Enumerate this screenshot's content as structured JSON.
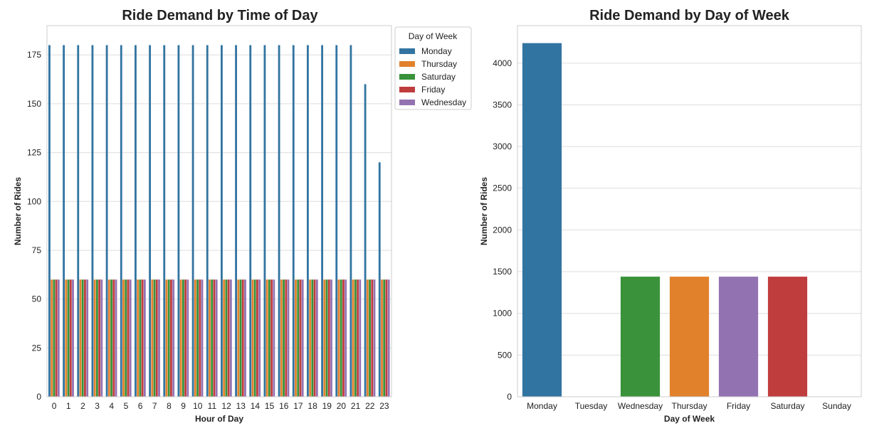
{
  "chart_data": [
    {
      "type": "bar",
      "title": "Ride Demand by Time of Day",
      "xlabel": "Hour of Day",
      "ylabel": "Number of Rides",
      "ylim": [
        0,
        190
      ],
      "yticks": [
        0,
        25,
        50,
        75,
        100,
        125,
        150,
        175
      ],
      "grid": true,
      "categories": [
        "0",
        "1",
        "2",
        "3",
        "4",
        "5",
        "6",
        "7",
        "8",
        "9",
        "10",
        "11",
        "12",
        "13",
        "14",
        "15",
        "16",
        "17",
        "18",
        "19",
        "20",
        "21",
        "22",
        "23"
      ],
      "legend": {
        "title": "Day of Week",
        "placement": "top-right-outside"
      },
      "series": [
        {
          "name": "Monday",
          "color": "#3274a1",
          "values": [
            180,
            180,
            180,
            180,
            180,
            180,
            180,
            180,
            180,
            180,
            180,
            180,
            180,
            180,
            180,
            180,
            180,
            180,
            180,
            180,
            180,
            180,
            160,
            120
          ]
        },
        {
          "name": "Thursday",
          "color": "#e1812c",
          "values": [
            60,
            60,
            60,
            60,
            60,
            60,
            60,
            60,
            60,
            60,
            60,
            60,
            60,
            60,
            60,
            60,
            60,
            60,
            60,
            60,
            60,
            60,
            60,
            60
          ]
        },
        {
          "name": "Saturday",
          "color": "#3a923a",
          "values": [
            60,
            60,
            60,
            60,
            60,
            60,
            60,
            60,
            60,
            60,
            60,
            60,
            60,
            60,
            60,
            60,
            60,
            60,
            60,
            60,
            60,
            60,
            60,
            60
          ]
        },
        {
          "name": "Friday",
          "color": "#c03d3e",
          "values": [
            60,
            60,
            60,
            60,
            60,
            60,
            60,
            60,
            60,
            60,
            60,
            60,
            60,
            60,
            60,
            60,
            60,
            60,
            60,
            60,
            60,
            60,
            60,
            60
          ]
        },
        {
          "name": "Wednesday",
          "color": "#9372b2",
          "values": [
            60,
            60,
            60,
            60,
            60,
            60,
            60,
            60,
            60,
            60,
            60,
            60,
            60,
            60,
            60,
            60,
            60,
            60,
            60,
            60,
            60,
            60,
            60,
            60
          ]
        }
      ]
    },
    {
      "type": "bar",
      "title": "Ride Demand by Day of Week",
      "xlabel": "Day of Week",
      "ylabel": "Number of Rides",
      "ylim": [
        0,
        4450
      ],
      "yticks": [
        0,
        500,
        1000,
        1500,
        2000,
        2500,
        3000,
        3500,
        4000
      ],
      "grid": true,
      "categories": [
        "Monday",
        "Tuesday",
        "Wednesday",
        "Thursday",
        "Friday",
        "Saturday",
        "Sunday"
      ],
      "values": [
        4240,
        0,
        1440,
        1440,
        1440,
        1440,
        0
      ],
      "colors": [
        "#3274a1",
        "#e1812c",
        "#3a923a",
        "#e1812c",
        "#9372b2",
        "#c03d3e",
        "#845b53"
      ]
    }
  ]
}
